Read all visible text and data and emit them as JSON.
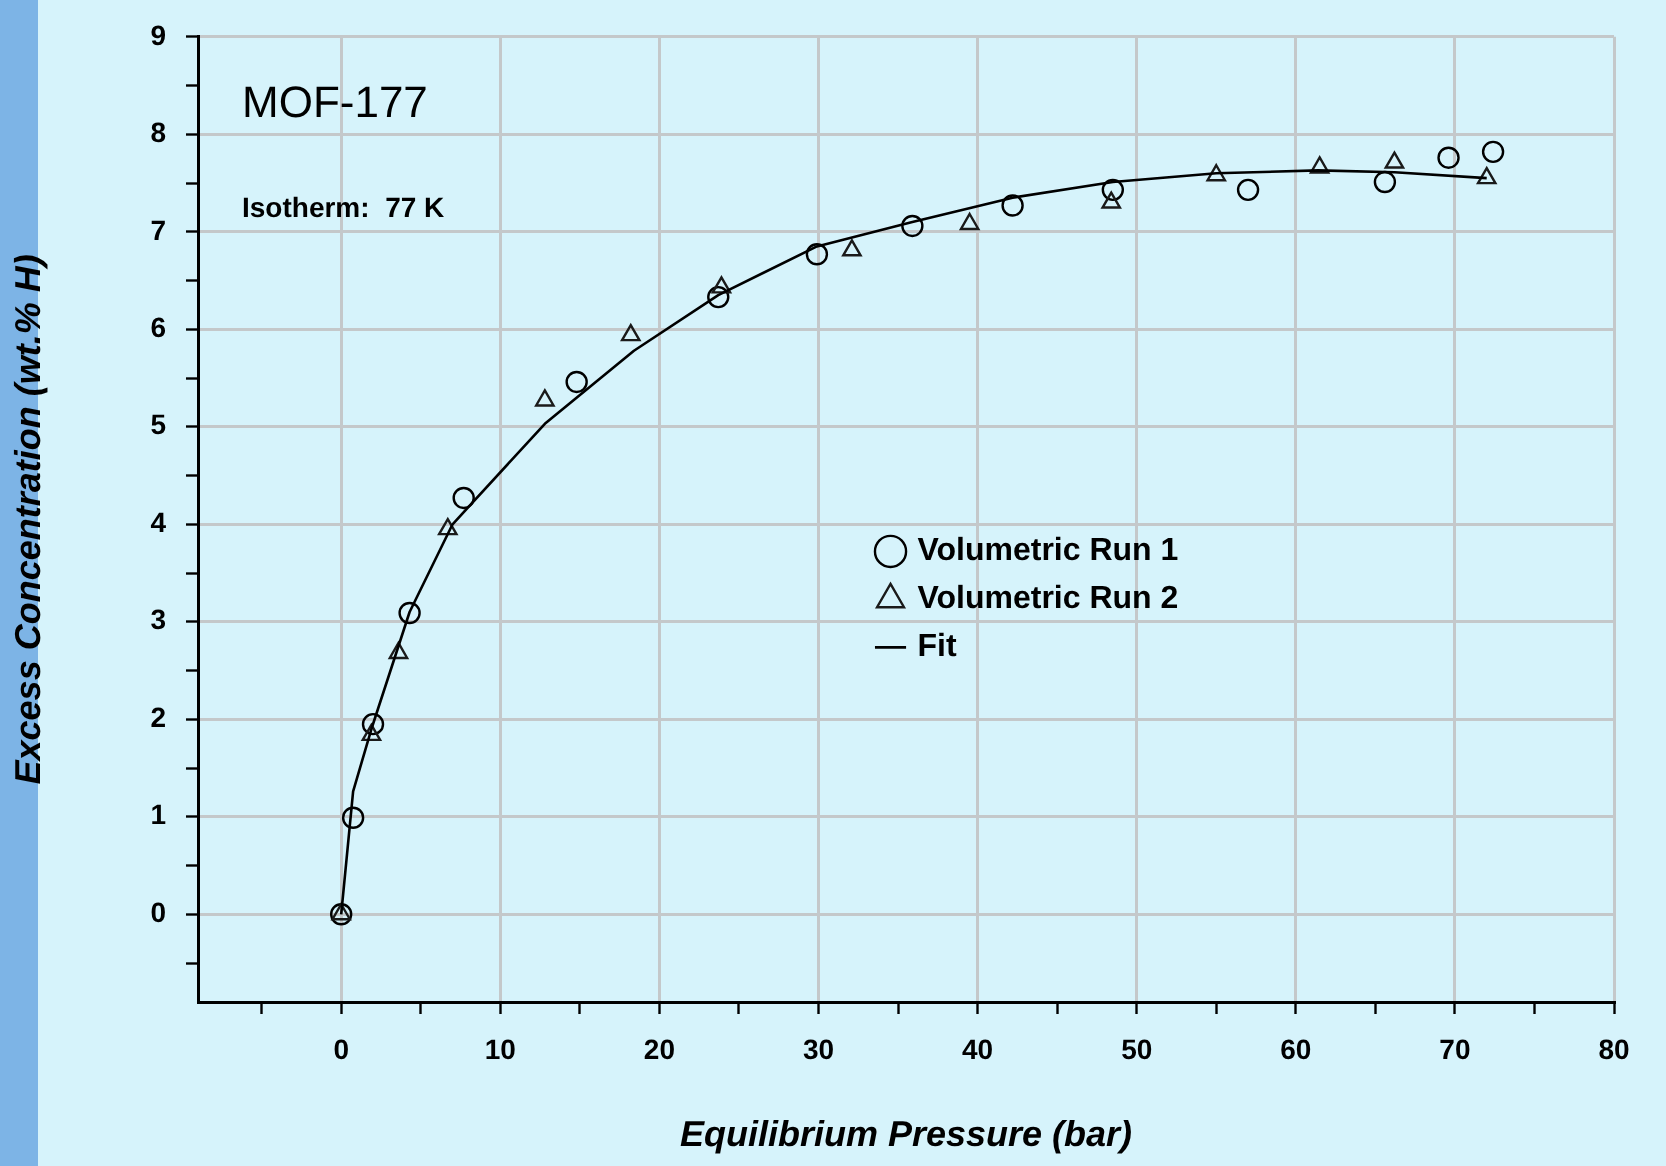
{
  "chart_data": {
    "type": "scatter",
    "title": "MOF-177",
    "xlabel": "Equilibrium Pressure (bar)",
    "ylabel": "Excess Concentration (wt.% H)",
    "annotations": [
      "Isotherm:  77 K"
    ],
    "xlim": [
      -9,
      80
    ],
    "xticks": [
      {
        "value": -5,
        "label": null
      },
      0,
      {
        "value": 5,
        "label": null
      },
      10,
      {
        "value": 15,
        "label": null
      },
      20,
      {
        "value": 25,
        "label": null
      },
      30,
      {
        "value": 35,
        "label": null
      },
      40,
      {
        "value": 45,
        "label": null
      },
      50,
      {
        "value": 55,
        "label": null
      },
      60,
      {
        "value": 65,
        "label": null
      },
      70,
      {
        "value": 75,
        "label": null
      },
      80
    ],
    "ylim": [
      -0.9,
      9
    ],
    "yticks": [
      {
        "value": -0.5,
        "label": null
      },
      0,
      {
        "value": 0.5,
        "label": null
      },
      1,
      {
        "value": 1.5,
        "label": null
      },
      2,
      {
        "value": 2.5,
        "label": null
      },
      3,
      {
        "value": 3.5,
        "label": null
      },
      4,
      {
        "value": 4.5,
        "label": null
      },
      5,
      {
        "value": 5.5,
        "label": null
      },
      6,
      {
        "value": 6.5,
        "label": null
      },
      7,
      {
        "value": 7.5,
        "label": null
      },
      8,
      {
        "value": 8.5,
        "label": null
      },
      9
    ],
    "grid": true,
    "legend": "right",
    "series": [
      {
        "name": "Volumetric Run 1",
        "type": "scatter",
        "marker": "circle",
        "color": "#000000",
        "x": [
          0,
          0.75,
          2.0,
          4.3,
          7.7,
          14.8,
          23.7,
          29.9,
          35.9,
          42.2,
          48.5,
          57.0,
          65.6,
          69.6,
          72.4
        ],
        "values": [
          0,
          0.99,
          1.95,
          3.09,
          4.27,
          5.46,
          6.33,
          6.77,
          7.06,
          7.27,
          7.43,
          7.43,
          7.51,
          7.76,
          7.82
        ]
      },
      {
        "name": "Volumetric Run 2",
        "type": "scatter",
        "marker": "triangle",
        "color": "#1a1a1a",
        "x": [
          0,
          1.9,
          3.6,
          6.7,
          12.8,
          18.2,
          23.9,
          32.1,
          39.5,
          48.4,
          55.0,
          61.5,
          66.2,
          72.0
        ],
        "values": [
          0,
          1.84,
          2.68,
          3.95,
          5.27,
          5.94,
          6.43,
          6.81,
          7.08,
          7.3,
          7.58,
          7.66,
          7.71,
          7.55
        ]
      },
      {
        "name": "Fit",
        "type": "line",
        "marker": "none",
        "line_style": "solid",
        "color": "#000000",
        "x": [
          0,
          0.75,
          1.9,
          4.3,
          7.0,
          12.8,
          18.4,
          23.7,
          29.9,
          35.9,
          42.2,
          48.5,
          55.0,
          61.4,
          66.2,
          72.0
        ],
        "values": [
          0,
          1.26,
          1.9,
          3.1,
          4.0,
          5.03,
          5.78,
          6.35,
          6.85,
          7.1,
          7.35,
          7.51,
          7.6,
          7.63,
          7.61,
          7.55
        ]
      }
    ]
  }
}
